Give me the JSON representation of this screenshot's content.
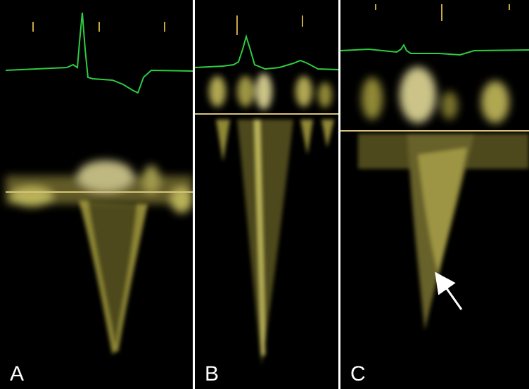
{
  "figure": {
    "panels": [
      {
        "id": "A",
        "label": "A",
        "ecg_color": "#2ecc40",
        "baseline_color": "#d9c27a"
      },
      {
        "id": "B",
        "label": "B",
        "ecg_color": "#2ecc40",
        "baseline_color": "#d9c27a"
      },
      {
        "id": "C",
        "label": "C",
        "ecg_color": "#2ecc40",
        "baseline_color": "#d9c27a"
      }
    ],
    "annotation": {
      "type": "arrow",
      "panel": "C",
      "color": "#ffffff"
    },
    "doppler_color": "#e8e070",
    "background": "#000000",
    "divider_color": "#ffffff"
  }
}
